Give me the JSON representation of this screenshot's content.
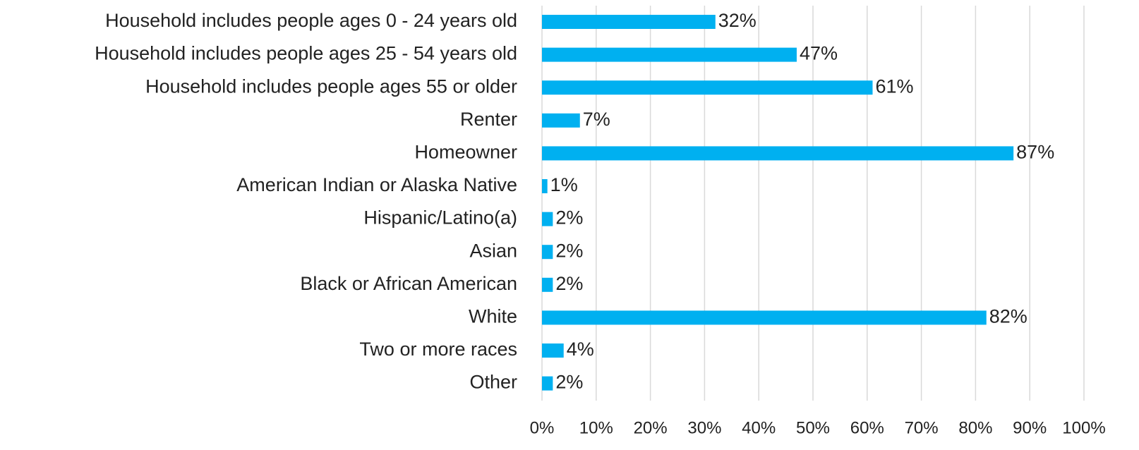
{
  "chart_data": {
    "type": "barh",
    "categories": [
      "Household includes people ages 0 - 24 years old",
      "Household includes people ages 25 - 54 years old",
      "Household includes people ages 55 or older",
      "Renter",
      "Homeowner",
      "American Indian or Alaska Native",
      "Hispanic/Latino(a)",
      "Asian",
      "Black or African American",
      "White",
      "Two or more races",
      "Other"
    ],
    "values": [
      32,
      47,
      61,
      7,
      87,
      1,
      2,
      2,
      2,
      82,
      4,
      2
    ],
    "value_labels": [
      "32%",
      "47%",
      "61%",
      "7%",
      "87%",
      "1%",
      "2%",
      "2%",
      "2%",
      "82%",
      "4%",
      "2%"
    ],
    "color": "#00b0f0",
    "xlim": [
      0,
      100
    ],
    "xticks": [
      {
        "value": 0,
        "label": "0%"
      },
      {
        "value": 10,
        "label": "10%"
      },
      {
        "value": 20,
        "label": "20%"
      },
      {
        "value": 30,
        "label": "30%"
      },
      {
        "value": 40,
        "label": "40%"
      },
      {
        "value": 50,
        "label": "50%"
      },
      {
        "value": 60,
        "label": "60%"
      },
      {
        "value": 70,
        "label": "70%"
      },
      {
        "value": 80,
        "label": "80%"
      },
      {
        "value": 90,
        "label": "90%"
      },
      {
        "value": 100,
        "label": "100%"
      }
    ],
    "grid": true
  }
}
